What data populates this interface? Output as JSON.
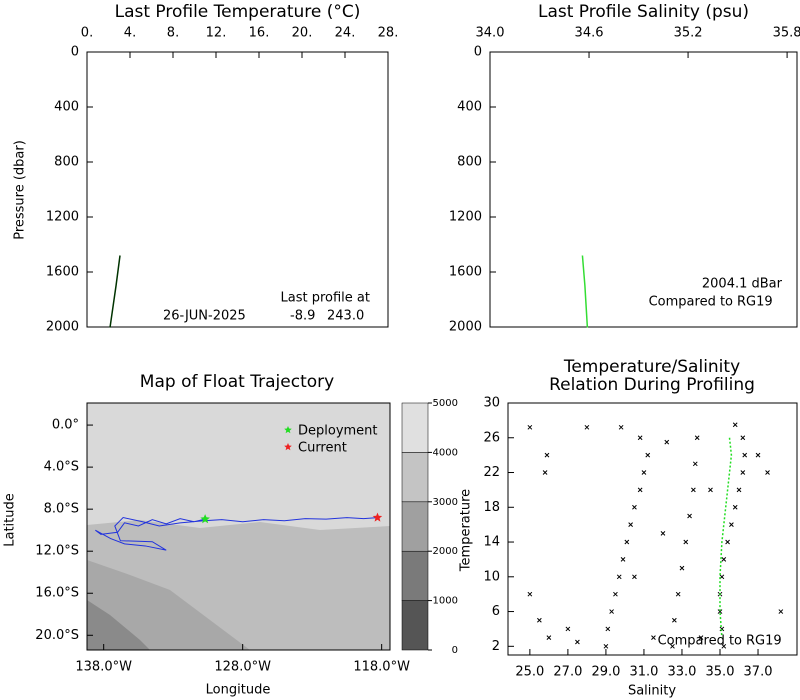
{
  "chart_data": [
    {
      "type": "line",
      "title": "Last Profile Temperature (°C)",
      "ylabel": "Pressure (dbar)",
      "xlim": [
        0,
        28
      ],
      "xticks": [
        {
          "value": 0,
          "label": "0."
        },
        {
          "value": 4,
          "label": "4."
        },
        {
          "value": 8,
          "label": "8."
        },
        {
          "value": 12,
          "label": "12."
        },
        {
          "value": 16,
          "label": "16."
        },
        {
          "value": 20,
          "label": "20."
        },
        {
          "value": 24,
          "label": "24."
        },
        {
          "value": 28,
          "label": "28."
        }
      ],
      "ylim": [
        2000,
        0
      ],
      "yticks": [
        0,
        400,
        800,
        1200,
        1600,
        2000
      ],
      "series": [
        {
          "color": "#003300",
          "x": [
            3.07,
            2.7,
            2.14
          ],
          "y": [
            1480,
            1700,
            2004
          ]
        }
      ],
      "annotations": [
        "Last profile at",
        "26-JUN-2025",
        "-8.9",
        "243.0"
      ]
    },
    {
      "type": "line",
      "title": "Last Profile Salinity (psu)",
      "xlim": [
        34.0,
        35.86
      ],
      "xticks": [
        {
          "value": 34.0,
          "label": "34.0"
        },
        34.6,
        35.2,
        35.8
      ],
      "ylim": [
        2000,
        0
      ],
      "yticks": [
        0,
        400,
        800,
        1200,
        1600,
        2000
      ],
      "series": [
        {
          "color": "#33dd33",
          "x": [
            34.56,
            34.575,
            34.59
          ],
          "y": [
            1480,
            1700,
            2004
          ]
        }
      ],
      "annotations": [
        "2004.1 dBar",
        "Compared to"
      ],
      "reference": {
        "name": "RG19",
        "color": "#22dd22"
      }
    },
    {
      "type": "map",
      "title": "Map of Float Trajectory",
      "xlabel": "Longitude",
      "ylabel": "Latitude",
      "xlim": [
        -139.2,
        -117.4
      ],
      "xticks": [
        {
          "value": -138,
          "label": "138.0°W"
        },
        {
          "value": -128,
          "label": "128.0°W"
        },
        {
          "value": -118,
          "label": "118.0°W"
        }
      ],
      "ylim": [
        -21.4,
        2.1
      ],
      "yticks": [
        {
          "value": 0,
          "label": "0.0°"
        },
        {
          "value": -4,
          "label": "4.0°S"
        },
        {
          "value": -8,
          "label": "8.0°S"
        },
        {
          "value": -12,
          "label": "12.0°S"
        },
        {
          "value": -16,
          "label": "16.0°S"
        },
        {
          "value": -20,
          "label": "20.0°S"
        }
      ],
      "track": {
        "color": "#2233dd",
        "lon": [
          -130.7,
          -131.5,
          -132.5,
          -133.5,
          -134.5,
          -135.5,
          -136.5,
          -137.0,
          -138.2,
          -138.6,
          -137.5,
          -136.5,
          -135.0,
          -133.5,
          -134.5,
          -136.8,
          -137.2,
          -136.6,
          -135.2,
          -134.0,
          -132.5,
          -130.8,
          -129.5,
          -128.0,
          -126.5,
          -125.0,
          -123.5,
          -122.0,
          -120.5,
          -119.3,
          -118.3
        ],
        "lat": [
          -8.95,
          -9.2,
          -8.9,
          -9.4,
          -9.0,
          -9.6,
          -9.3,
          -10.2,
          -10.4,
          -10.0,
          -10.8,
          -11.3,
          -11.5,
          -11.9,
          -11.1,
          -11.0,
          -9.6,
          -8.8,
          -9.2,
          -9.6,
          -9.3,
          -9.1,
          -9.0,
          -9.2,
          -9.0,
          -9.1,
          -8.9,
          -8.95,
          -8.8,
          -8.9,
          -8.8
        ]
      },
      "markers": [
        {
          "name": "Deployment",
          "color": "#22dd22",
          "lon": -130.7,
          "lat": -8.95
        },
        {
          "name": "Current",
          "color": "#ee2222",
          "lon": -118.3,
          "lat": -8.8
        }
      ],
      "colorbar": {
        "lim": [
          0,
          5000
        ],
        "ticks": [
          0,
          1000,
          2000,
          3000,
          4000,
          5000
        ],
        "colors": [
          "#555555",
          "#7a7a7a",
          "#a0a0a0",
          "#c4c4c4",
          "#e0e0e0"
        ]
      }
    },
    {
      "type": "scatter",
      "title_lines": [
        "Temperature/Salinity",
        "Relation During Profiling"
      ],
      "xlabel": "Salinity",
      "ylabel": "Temperature",
      "xlim": [
        23.85,
        39.05
      ],
      "xticks": [
        {
          "value": 25,
          "label": "25.0"
        },
        {
          "value": 27,
          "label": "27.0"
        },
        {
          "value": 29,
          "label": "29.0"
        },
        {
          "value": 31,
          "label": "31.0"
        },
        {
          "value": 33,
          "label": "33.0"
        },
        {
          "value": 35,
          "label": "35.0"
        },
        {
          "value": 37,
          "label": "37.0"
        }
      ],
      "ylim": [
        1,
        30
      ],
      "yticks": [
        2,
        6,
        10,
        14,
        18,
        22,
        26,
        30
      ],
      "series": [
        {
          "color": "#000000",
          "x": [
            35.2,
            35.1,
            35.0,
            35.0,
            35.1,
            35.2,
            35.4,
            35.6,
            35.8,
            36.0,
            36.2,
            36.3,
            36.2,
            35.8,
            29.0,
            29.1,
            29.3,
            29.5,
            29.7,
            29.9,
            30.1,
            30.3,
            30.5,
            30.8,
            31.0,
            31.2,
            30.8,
            29.8,
            32.5,
            32.6,
            32.8,
            33.0,
            33.2,
            33.4,
            33.6,
            33.7,
            33.8,
            25.0,
            25.5,
            26.0,
            25.8,
            25.9,
            25.0,
            27.0,
            27.5,
            28.0,
            37.0,
            37.5,
            38.2,
            34.0,
            31.5,
            30.5,
            32.0,
            34.5,
            32.2
          ],
          "y": [
            2,
            4,
            6,
            8,
            10,
            12,
            14,
            16,
            18,
            20,
            22,
            24,
            26,
            27.5,
            2,
            4,
            6,
            8,
            10,
            12,
            14,
            16,
            18,
            20,
            22,
            24,
            26,
            27.2,
            2,
            5,
            8,
            11,
            14,
            17,
            20,
            23,
            26,
            8,
            5,
            3,
            22,
            24,
            27.2,
            4,
            2.5,
            27.2,
            24,
            22,
            6,
            3,
            3,
            10,
            15,
            20,
            25.5
          ]
        },
        {
          "color": "#22dd22",
          "x": [
            35.5,
            35.6,
            35.5,
            35.4,
            35.3,
            35.2,
            35.1,
            35.0,
            35.0,
            35.1
          ],
          "y": [
            26,
            24,
            22,
            20,
            18,
            16,
            14,
            10,
            6,
            3
          ]
        }
      ],
      "annotations": [
        "Compared to"
      ],
      "reference": {
        "name": "RG19",
        "color": "#22dd22"
      }
    }
  ]
}
